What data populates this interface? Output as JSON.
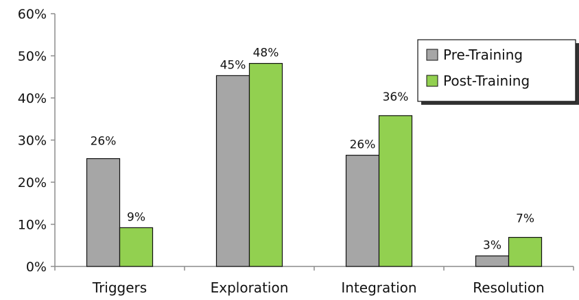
{
  "chart_data": {
    "type": "bar",
    "categories": [
      "Triggers",
      "Exploration",
      "Integration",
      "Resolution"
    ],
    "series": [
      {
        "name": "Pre-Training",
        "values": [
          25.6,
          45.3,
          26.4,
          2.5
        ],
        "labels": [
          "26%",
          "45%",
          "26%",
          "3%"
        ],
        "color": "#a6a6a6"
      },
      {
        "name": "Post-Training",
        "values": [
          9.2,
          48.2,
          35.8,
          6.9
        ],
        "labels": [
          "9%",
          "48%",
          "36%",
          "7%"
        ],
        "color": "#92d050"
      }
    ],
    "ylim": [
      0,
      60
    ],
    "yticks": [
      0,
      10,
      20,
      30,
      40,
      50,
      60
    ],
    "ytick_labels": [
      "0%",
      "10%",
      "20%",
      "30%",
      "40%",
      "50%",
      "60%"
    ],
    "title": "",
    "xlabel": "",
    "ylabel": "",
    "grid": false,
    "legend_position": "top-right"
  }
}
